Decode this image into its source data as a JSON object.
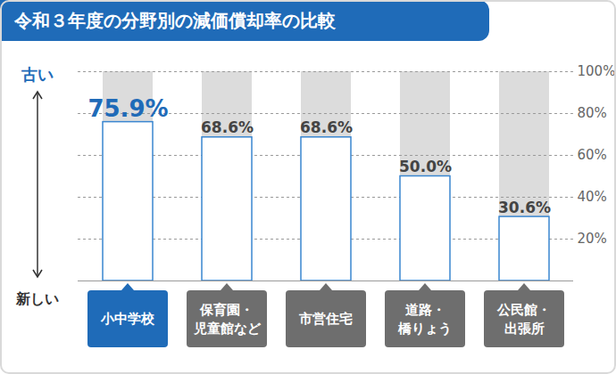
{
  "chart_data": {
    "type": "bar",
    "title": "令和３年度の分野別の減価償却率の比較",
    "categories": [
      "小中学校",
      "保育園・児童館など",
      "市営住宅",
      "道路・橋りょう",
      "公民館・出張所"
    ],
    "values": [
      75.9,
      68.6,
      68.6,
      50.0,
      30.6
    ],
    "value_labels": [
      "75.9%",
      "68.6%",
      "68.6%",
      "50.0%",
      "30.6%"
    ],
    "data_labels": true,
    "color": "#3a86d0",
    "ylim": [
      0,
      100
    ],
    "yticks": [
      {
        "value": 20,
        "label": "20%"
      },
      {
        "value": 40,
        "label": "40%"
      },
      {
        "value": 60,
        "label": "60%"
      },
      {
        "value": 80,
        "label": "80%"
      },
      {
        "value": 100,
        "label": "100%"
      }
    ],
    "grid": true,
    "tick_labels": "y",
    "annotations": [
      "古い",
      "新しい"
    ]
  }
}
